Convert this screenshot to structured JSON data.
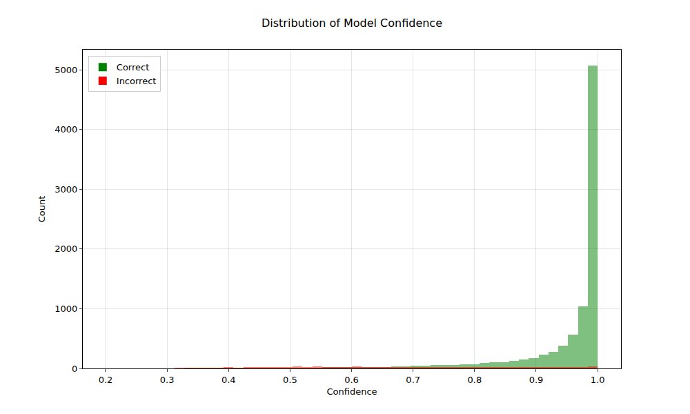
{
  "chart_data": {
    "type": "histogram",
    "title": "Distribution of Model Confidence",
    "x_label": "Confidence",
    "y_label": "Count",
    "bins": [
      0.2,
      0.216,
      0.232,
      0.248,
      0.264,
      0.28,
      0.296,
      0.312,
      0.328,
      0.344,
      0.36,
      0.376,
      0.392,
      0.408,
      0.424,
      0.44,
      0.456,
      0.472,
      0.488,
      0.504,
      0.52,
      0.536,
      0.552,
      0.568,
      0.584,
      0.6,
      0.616,
      0.632,
      0.648,
      0.664,
      0.68,
      0.696,
      0.712,
      0.728,
      0.744,
      0.76,
      0.776,
      0.792,
      0.808,
      0.824,
      0.84,
      0.856,
      0.872,
      0.888,
      0.904,
      0.92,
      0.936,
      0.952,
      0.968,
      0.984,
      1.0
    ],
    "series": [
      {
        "name": "Correct",
        "color": "green",
        "values": [
          0,
          0,
          0,
          0,
          0,
          0,
          0,
          0,
          1,
          1,
          2,
          2,
          3,
          3,
          4,
          4,
          5,
          6,
          7,
          8,
          10,
          11,
          12,
          14,
          16,
          18,
          20,
          26,
          28,
          32,
          40,
          45,
          50,
          55,
          58,
          62,
          75,
          70,
          90,
          100,
          105,
          125,
          150,
          175,
          230,
          280,
          380,
          570,
          1040,
          5070
        ]
      },
      {
        "name": "Incorrect",
        "color": "red",
        "values": [
          0,
          0,
          0,
          0,
          0,
          0,
          0,
          2,
          5,
          6,
          8,
          10,
          12,
          10,
          14,
          18,
          16,
          28,
          25,
          30,
          26,
          32,
          24,
          22,
          18,
          30,
          26,
          20,
          24,
          22,
          18,
          20,
          16,
          18,
          14,
          16,
          18,
          15,
          12,
          14,
          12,
          14,
          18,
          16,
          20,
          22,
          18,
          20,
          25,
          40
        ]
      }
    ],
    "xlim": [
      0.163,
      1.038
    ],
    "xticks": [
      0.2,
      0.3,
      0.4,
      0.5,
      0.6,
      0.7,
      0.8,
      0.9,
      {
        "value": 1,
        "label": "1.0"
      }
    ],
    "ylim": [
      0,
      5335
    ],
    "yticks": [
      0,
      1000,
      2000,
      3000,
      4000,
      5000
    ],
    "grid": true,
    "legend": "upper left"
  }
}
